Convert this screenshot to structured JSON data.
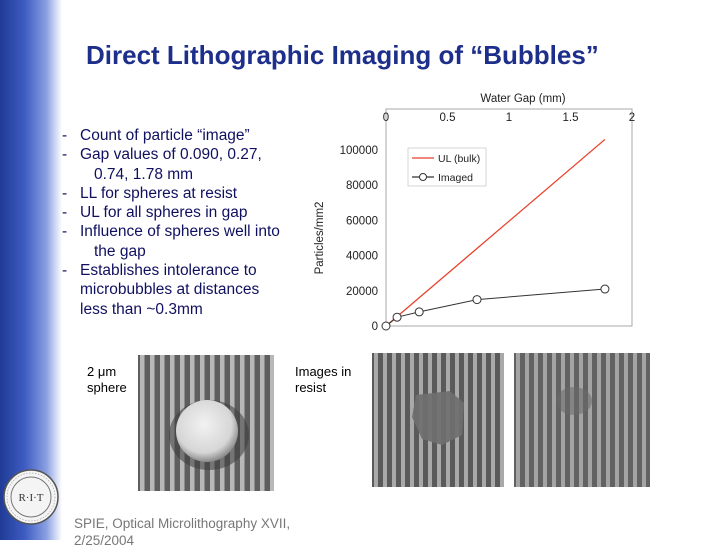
{
  "slide": {
    "title": "Direct Lithographic Imaging of “Bubbles”",
    "bullets": [
      {
        "text": "Count of particle “image”"
      },
      {
        "text": "Gap values of 0.090, 0.27,",
        "cont": [
          "0.74, 1.78 mm"
        ]
      },
      {
        "text": "LL for spheres at resist"
      },
      {
        "text": "UL for all spheres in gap"
      },
      {
        "text": "Influence of spheres well into",
        "cont": [
          "the gap"
        ]
      },
      {
        "text": "Establishes intolerance to",
        "cont": [
          "microbubbles at distances",
          "less than ~0.3mm"
        ]
      }
    ],
    "caption_sphere": {
      "line1": "2 μm",
      "line2": "sphere"
    },
    "caption_images": {
      "line1": "Images in",
      "line2": "resist"
    },
    "footer": {
      "line1": "SPIE, Optical Microlithography XVII,",
      "line2": "2/25/2004"
    },
    "logo": {
      "text": "R·I·T"
    }
  },
  "chart_data": {
    "type": "scatter",
    "title": "",
    "x_top_label": "Water Gap (mm)",
    "ylabel": "Particles/mm2",
    "xlim": [
      0,
      2
    ],
    "ylim": [
      0,
      100000
    ],
    "x_ticks": [
      "0",
      "0.5",
      "1",
      "1.5",
      "2"
    ],
    "y_ticks": [
      "0",
      "20000",
      "40000",
      "60000",
      "80000",
      "100000"
    ],
    "legend_position": "top-left",
    "series": [
      {
        "name": "UL (bulk)",
        "color": "#e8402a",
        "style": "line",
        "x": [
          0,
          1.78
        ],
        "y": [
          0,
          106000
        ]
      },
      {
        "name": "Imaged",
        "color": "#333333",
        "style": "line-markers",
        "x": [
          0,
          0.09,
          0.27,
          0.74,
          1.78
        ],
        "y": [
          0,
          5000,
          8000,
          15000,
          21000
        ]
      }
    ]
  }
}
